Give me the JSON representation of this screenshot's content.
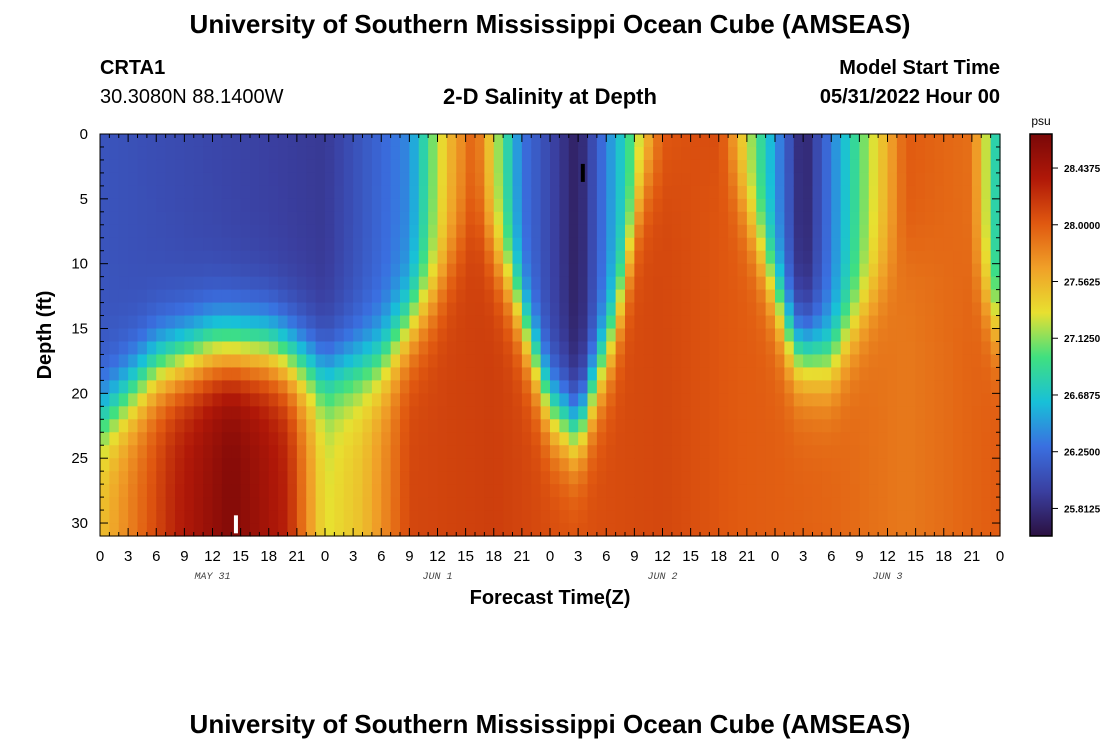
{
  "header": {
    "title": "University of Southern Mississippi Ocean Cube (AMSEAS)",
    "station_id": "CRTA1",
    "coords": "30.3080N  88.1400W",
    "subtitle": "2-D Salinity at Depth",
    "start_label": "Model Start Time",
    "start_value": "05/31/2022 Hour 00"
  },
  "footer": {
    "title": "University of Southern Mississippi Ocean Cube (AMSEAS)"
  },
  "colors": {
    "stops": [
      "#2b1040",
      "#3a3fa0",
      "#3a6fe0",
      "#18c0d8",
      "#40e080",
      "#e8e030",
      "#f0a028",
      "#e05810",
      "#b01808",
      "#7a0808"
    ]
  },
  "chart_data": {
    "type": "heatmap",
    "title": "2-D Salinity at Depth",
    "xlabel": "Forecast Time(Z)",
    "ylabel": "Depth (ft)",
    "x_range_hours": [
      0,
      96
    ],
    "ylim": [
      0,
      31
    ],
    "x_ticks": [
      "0",
      "3",
      "6",
      "9",
      "12",
      "15",
      "18",
      "21",
      "0",
      "3",
      "6",
      "9",
      "12",
      "15",
      "18",
      "21",
      "0",
      "3",
      "6",
      "9",
      "12",
      "15",
      "18",
      "21",
      "0",
      "3",
      "6",
      "9",
      "12",
      "15",
      "18",
      "21",
      "0"
    ],
    "y_ticks": [
      "0",
      "5",
      "10",
      "15",
      "20",
      "25",
      "30"
    ],
    "day_labels": [
      "MAY 31",
      "JUN 1",
      "JUN 2",
      "JUN 3"
    ],
    "colorbar": {
      "unit": "psu",
      "ticks": [
        "28.4375",
        "28.0000",
        "27.5625",
        "27.1250",
        "26.6875",
        "26.2500",
        "25.8125"
      ],
      "range": [
        25.6,
        28.7
      ]
    },
    "top_layer_salinity_psu": [
      {
        "hour": 0,
        "value": 26.1
      },
      {
        "hour": 12,
        "value": 26.0
      },
      {
        "hour": 18,
        "value": 25.95
      },
      {
        "hour": 24,
        "value": 25.9
      },
      {
        "hour": 33,
        "value": 26.4
      },
      {
        "hour": 37,
        "value": 27.5
      },
      {
        "hour": 40,
        "value": 28.0
      },
      {
        "hour": 45,
        "value": 26.3
      },
      {
        "hour": 51,
        "value": 25.7
      },
      {
        "hour": 56,
        "value": 26.8
      },
      {
        "hour": 60,
        "value": 28.0
      },
      {
        "hour": 66,
        "value": 28.1
      },
      {
        "hour": 70,
        "value": 27.0
      },
      {
        "hour": 75,
        "value": 25.7
      },
      {
        "hour": 82,
        "value": 27.2
      },
      {
        "hour": 86,
        "value": 28.0
      },
      {
        "hour": 93,
        "value": 27.9
      },
      {
        "hour": 96,
        "value": 26.6
      }
    ],
    "halocline_depth_ft": [
      {
        "hour": 0,
        "value": 22
      },
      {
        "hour": 6,
        "value": 18
      },
      {
        "hour": 12,
        "value": 16.5
      },
      {
        "hour": 18,
        "value": 16.5
      },
      {
        "hour": 24,
        "value": 18.5
      },
      {
        "hour": 30,
        "value": 17.5
      },
      {
        "hour": 36,
        "value": 12
      },
      {
        "hour": 40,
        "value": 6
      },
      {
        "hour": 44,
        "value": 12
      },
      {
        "hour": 48,
        "value": 21
      },
      {
        "hour": 51,
        "value": 23
      },
      {
        "hour": 55,
        "value": 15
      },
      {
        "hour": 58,
        "value": 4
      },
      {
        "hour": 66,
        "value": 1
      },
      {
        "hour": 70,
        "value": 8
      },
      {
        "hour": 74,
        "value": 16.5
      },
      {
        "hour": 78,
        "value": 17.5
      },
      {
        "hour": 82,
        "value": 13
      },
      {
        "hour": 86,
        "value": 9
      },
      {
        "hour": 92,
        "value": 9
      },
      {
        "hour": 96,
        "value": 15
      }
    ],
    "bottom_salinity_psu": [
      {
        "hour": 0,
        "value": 27.5
      },
      {
        "hour": 8,
        "value": 28.3
      },
      {
        "hour": 14,
        "value": 28.65
      },
      {
        "hour": 20,
        "value": 28.3
      },
      {
        "hour": 24,
        "value": 27.3
      },
      {
        "hour": 28,
        "value": 27.5
      },
      {
        "hour": 33,
        "value": 28.1
      },
      {
        "hour": 42,
        "value": 28.15
      },
      {
        "hour": 50,
        "value": 28.05
      },
      {
        "hour": 60,
        "value": 28.1
      },
      {
        "hour": 68,
        "value": 28.0
      },
      {
        "hour": 78,
        "value": 27.95
      },
      {
        "hour": 86,
        "value": 27.85
      },
      {
        "hour": 96,
        "value": 28.0
      }
    ],
    "markers": [
      {
        "hour": 14.5,
        "depth_ft": 30.1,
        "color": "#ffffff"
      },
      {
        "hour": 51.5,
        "depth_ft": 3.0,
        "color": "#000000"
      }
    ]
  }
}
